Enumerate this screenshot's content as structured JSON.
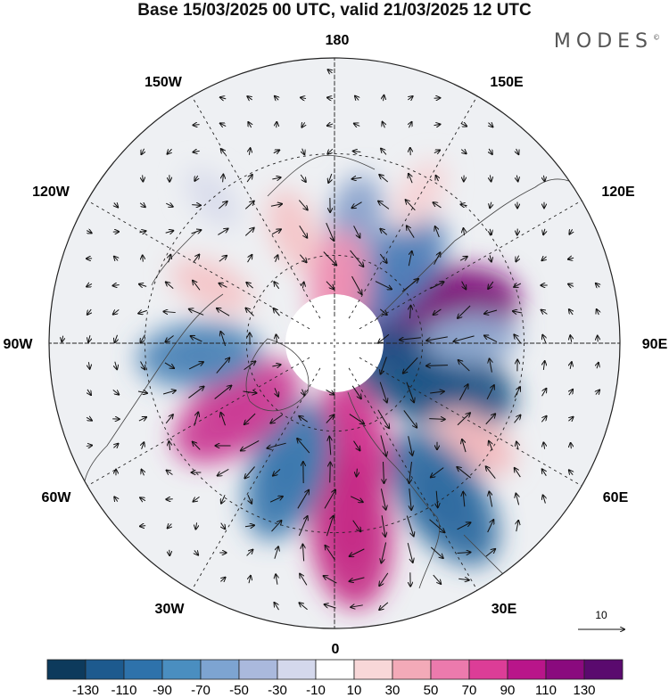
{
  "header": {
    "title": "Base 15/03/2025 00 UTC, valid 21/03/2025 12 UTC",
    "logo_text": "MODES",
    "logo_mark": "©"
  },
  "map": {
    "projection": "north-polar-stereographic",
    "longitude_labels": [
      {
        "id": "lon-180",
        "text": "180"
      },
      {
        "id": "lon-150w",
        "text": "150W"
      },
      {
        "id": "lon-150e",
        "text": "150E"
      },
      {
        "id": "lon-120w",
        "text": "120W"
      },
      {
        "id": "lon-120e",
        "text": "120E"
      },
      {
        "id": "lon-90w",
        "text": "90W"
      },
      {
        "id": "lon-90e",
        "text": "90E"
      },
      {
        "id": "lon-60w",
        "text": "60W"
      },
      {
        "id": "lon-60e",
        "text": "60E"
      },
      {
        "id": "lon-30w",
        "text": "30W"
      },
      {
        "id": "lon-30e",
        "text": "30E"
      },
      {
        "id": "lon-0",
        "text": "0"
      }
    ],
    "anomaly_centers": [
      {
        "lon": 105,
        "lat": 55,
        "value": 120,
        "color": "#7d0a79"
      },
      {
        "lon": 140,
        "lat": 58,
        "value": -80,
        "color": "#4f7fb8"
      },
      {
        "lon": 70,
        "lat": 55,
        "value": -120,
        "color": "#1d5486"
      },
      {
        "lon": 92,
        "lat": 45,
        "value": -45,
        "color": "#8fa9cf"
      },
      {
        "lon": 55,
        "lat": 35,
        "value": 40,
        "color": "#f2b8bd"
      },
      {
        "lon": 35,
        "lat": 30,
        "value": -100,
        "color": "#2d6aa0"
      },
      {
        "lon": 10,
        "lat": 55,
        "value": 80,
        "color": "#d0358f"
      },
      {
        "lon": 5,
        "lat": 30,
        "value": 100,
        "color": "#c52a86"
      },
      {
        "lon": -20,
        "lat": 45,
        "value": -90,
        "color": "#3b78ae"
      },
      {
        "lon": -55,
        "lat": 50,
        "value": 90,
        "color": "#cb3b94"
      },
      {
        "lon": -85,
        "lat": 45,
        "value": -70,
        "color": "#4f85b8"
      },
      {
        "lon": -115,
        "lat": 45,
        "value": 35,
        "color": "#f4c6c9"
      },
      {
        "lon": -160,
        "lat": 50,
        "value": 35,
        "color": "#f4c6c9"
      },
      {
        "lon": 170,
        "lat": 50,
        "value": -50,
        "color": "#8aa3cc"
      },
      {
        "lon": 175,
        "lat": 70,
        "value": 60,
        "color": "#ee8fb3"
      },
      {
        "lon": -140,
        "lat": 30,
        "value": -20,
        "color": "#d9dcec"
      },
      {
        "lon": 150,
        "lat": 35,
        "value": 25,
        "color": "#f6d3d6"
      }
    ],
    "reference_vector_label": "10"
  },
  "colorbar": {
    "colors": [
      "#0d3a5c",
      "#1d5a8e",
      "#2e72ab",
      "#4a8ec0",
      "#7da4d1",
      "#aab9dd",
      "#d4d8ec",
      "#ffffff",
      "#f8d7d8",
      "#f3aab8",
      "#ec7aad",
      "#dc3d97",
      "#b9158a",
      "#8a0a7e",
      "#5a0a6e"
    ],
    "labels": [
      "-130",
      "-110",
      "-90",
      "-70",
      "-50",
      "-30",
      "-10",
      "10",
      "30",
      "50",
      "70",
      "90",
      "110",
      "130"
    ]
  }
}
